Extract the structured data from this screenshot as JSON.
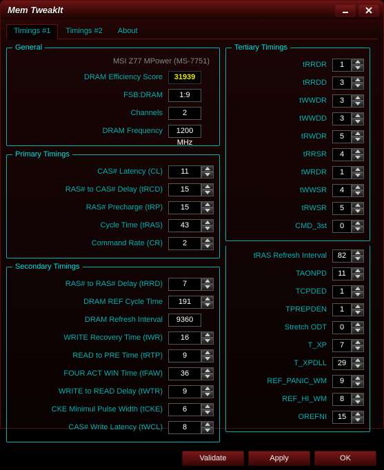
{
  "window": {
    "title": "Mem TweakIt"
  },
  "tabs": [
    {
      "id": "t1",
      "label": "Timings #1",
      "active": true
    },
    {
      "id": "t2",
      "label": "Timings #2",
      "active": false
    },
    {
      "id": "about",
      "label": "About",
      "active": false
    }
  ],
  "general": {
    "legend": "General",
    "motherboard": "MSI Z77 MPower (MS-7751)",
    "rows": [
      {
        "label": "DRAM Efficiency Score",
        "value": "31939",
        "kind": "score"
      },
      {
        "label": "FSB:DRAM",
        "value": "1:9",
        "kind": "static"
      },
      {
        "label": "Channels",
        "value": "2",
        "kind": "static"
      },
      {
        "label": "DRAM Frequency",
        "value": "1200 MHz",
        "kind": "static"
      }
    ]
  },
  "primary": {
    "legend": "Primary Timings",
    "rows": [
      {
        "label": "CAS# Latency (CL)",
        "value": "11"
      },
      {
        "label": "RAS# to CAS# Delay (tRCD)",
        "value": "15"
      },
      {
        "label": "RAS# Precharge (tRP)",
        "value": "15"
      },
      {
        "label": "Cycle Time (tRAS)",
        "value": "43"
      },
      {
        "label": "Command Rate (CR)",
        "value": "2"
      }
    ]
  },
  "secondary": {
    "legend": "Secondary Timings",
    "rows": [
      {
        "label": "RAS# to RAS# Delay (tRRD)",
        "value": "7"
      },
      {
        "label": "DRAM REF Cycle Time",
        "value": "191"
      },
      {
        "label": "DRAM Refresh Interval",
        "value": "9360",
        "nospin": true
      },
      {
        "label": "WRITE Recovery Time (tWR)",
        "value": "16"
      },
      {
        "label": "READ to PRE Time (tRTP)",
        "value": "9"
      },
      {
        "label": "FOUR ACT WIN Time (tFAW)",
        "value": "36"
      },
      {
        "label": "WRITE to READ Delay (tWTR)",
        "value": "9"
      },
      {
        "label": "CKE Minimul Pulse Width (tCKE)",
        "value": "6"
      },
      {
        "label": "CAS# Write Latency (tWCL)",
        "value": "8"
      }
    ]
  },
  "tertiary": {
    "legend": "Tertiary Timings",
    "rows": [
      {
        "label": "tRRDR",
        "value": "1"
      },
      {
        "label": "tRRDD",
        "value": "3"
      },
      {
        "label": "tWWDR",
        "value": "3"
      },
      {
        "label": "tWWDD",
        "value": "3"
      },
      {
        "label": "tRWDR",
        "value": "5"
      },
      {
        "label": "tRRSR",
        "value": "4"
      },
      {
        "label": "tWRDR",
        "value": "1"
      },
      {
        "label": "tWWSR",
        "value": "4"
      },
      {
        "label": "tRWSR",
        "value": "5"
      },
      {
        "label": "CMD_3st",
        "value": "0"
      }
    ]
  },
  "extras": {
    "rows": [
      {
        "label": "tRAS Refresh Interval",
        "value": "82"
      },
      {
        "label": "TAONPD",
        "value": "11"
      },
      {
        "label": "TCPDED",
        "value": "1"
      },
      {
        "label": "TPREPDEN",
        "value": "1"
      },
      {
        "label": "Stretch ODT",
        "value": "0"
      },
      {
        "label": "T_XP",
        "value": "7"
      },
      {
        "label": "T_XPDLL",
        "value": "29"
      },
      {
        "label": "REF_PANIC_WM",
        "value": "9"
      },
      {
        "label": "REF_HI_WM",
        "value": "8"
      },
      {
        "label": "OREFNI",
        "value": "15"
      }
    ]
  },
  "buttons": {
    "validate": "Validate",
    "apply": "Apply",
    "ok": "OK"
  }
}
